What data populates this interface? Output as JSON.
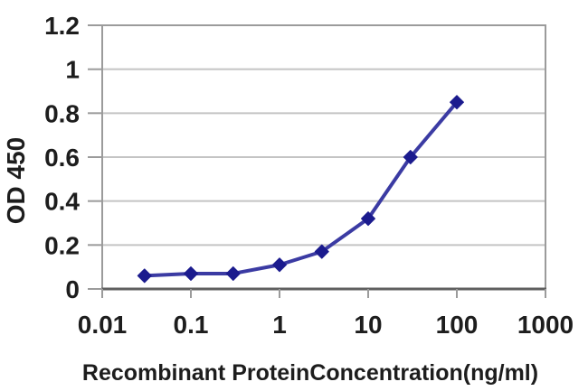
{
  "chart_data": {
    "type": "line",
    "title": "",
    "xlabel": "Recombinant ProteinConcentration(ng/ml)",
    "ylabel": "OD 450",
    "x_scale": "log",
    "xlim": [
      0.01,
      1000
    ],
    "ylim": [
      0,
      1.2
    ],
    "x_ticks": [
      "0.01",
      "0.1",
      "1",
      "10",
      "100",
      "1000"
    ],
    "y_ticks": [
      "0",
      "0.2",
      "0.4",
      "0.6",
      "0.8",
      "1",
      "1.2"
    ],
    "x": [
      0.03,
      0.1,
      0.3,
      1,
      3,
      10,
      30,
      100
    ],
    "values": [
      0.06,
      0.07,
      0.07,
      0.11,
      0.17,
      0.32,
      0.6,
      0.85
    ],
    "grid": "horizontal",
    "legend_position": "none",
    "marker": "diamond",
    "colors": {
      "line": "#3b3ba3",
      "marker": "#1b1b8e",
      "gridline": "#c4c4c4",
      "plot_border": "#9b9b9b",
      "axis": "#5f5f5f",
      "text": "#1d1d1d",
      "background": "#ffffff"
    }
  }
}
